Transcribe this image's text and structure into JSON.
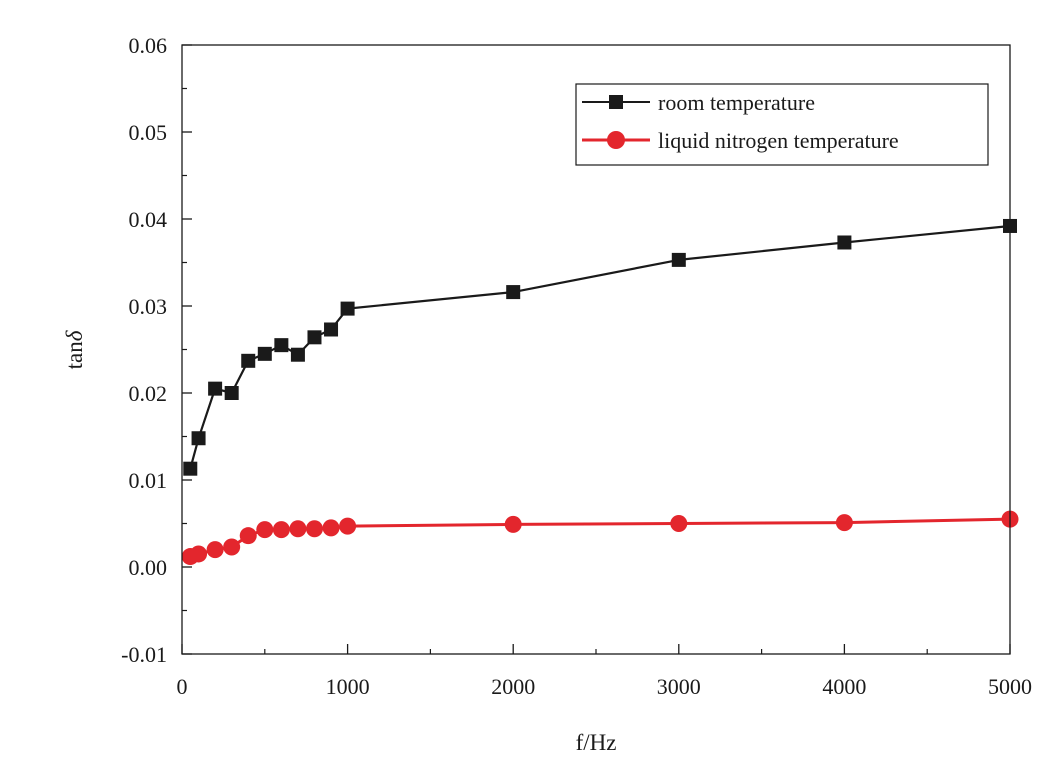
{
  "chart_data": {
    "type": "line",
    "title": "",
    "xlabel": "f/Hz",
    "ylabel_prefix": "tan",
    "ylabel_symbol": "δ",
    "xlim": [
      0,
      5000
    ],
    "ylim": [
      -0.01,
      0.06
    ],
    "x_ticks": [
      {
        "value": 0,
        "label": "0"
      },
      {
        "value": 1000,
        "label": "1000"
      },
      {
        "value": 2000,
        "label": "2000"
      },
      {
        "value": 3000,
        "label": "3000"
      },
      {
        "value": 4000,
        "label": "4000"
      },
      {
        "value": 5000,
        "label": "5000"
      }
    ],
    "x_minor_ticks": [
      500,
      1500,
      2500,
      3500,
      4500
    ],
    "y_ticks": [
      {
        "value": -0.01,
        "label": "-0.01"
      },
      {
        "value": 0.0,
        "label": "0.00"
      },
      {
        "value": 0.01,
        "label": "0.01"
      },
      {
        "value": 0.02,
        "label": "0.02"
      },
      {
        "value": 0.03,
        "label": "0.03"
      },
      {
        "value": 0.04,
        "label": "0.04"
      },
      {
        "value": 0.05,
        "label": "0.05"
      },
      {
        "value": 0.06,
        "label": "0.06"
      }
    ],
    "y_minor_ticks": [
      -0.005,
      0.005,
      0.015,
      0.025,
      0.035,
      0.045,
      0.055
    ],
    "grid": false,
    "legend_position": "top-right",
    "series": [
      {
        "name": "room temperature",
        "color": "#1a1a1a",
        "marker": "square",
        "x": [
          50,
          100,
          200,
          300,
          400,
          500,
          600,
          700,
          800,
          900,
          1000,
          2000,
          3000,
          4000,
          5000
        ],
        "y": [
          0.0113,
          0.0148,
          0.0205,
          0.02,
          0.0237,
          0.0245,
          0.0255,
          0.0244,
          0.0264,
          0.0273,
          0.0297,
          0.0316,
          0.0353,
          0.0373,
          0.0392
        ]
      },
      {
        "name": "liquid nitrogen temperature",
        "color": "#e3262d",
        "marker": "circle",
        "x": [
          50,
          100,
          200,
          300,
          400,
          500,
          600,
          700,
          800,
          900,
          1000,
          2000,
          3000,
          4000,
          5000
        ],
        "y": [
          0.0012,
          0.0015,
          0.002,
          0.0023,
          0.0036,
          0.0043,
          0.0043,
          0.0044,
          0.0044,
          0.0045,
          0.0047,
          0.0049,
          0.005,
          0.0051,
          0.0055
        ]
      }
    ]
  }
}
